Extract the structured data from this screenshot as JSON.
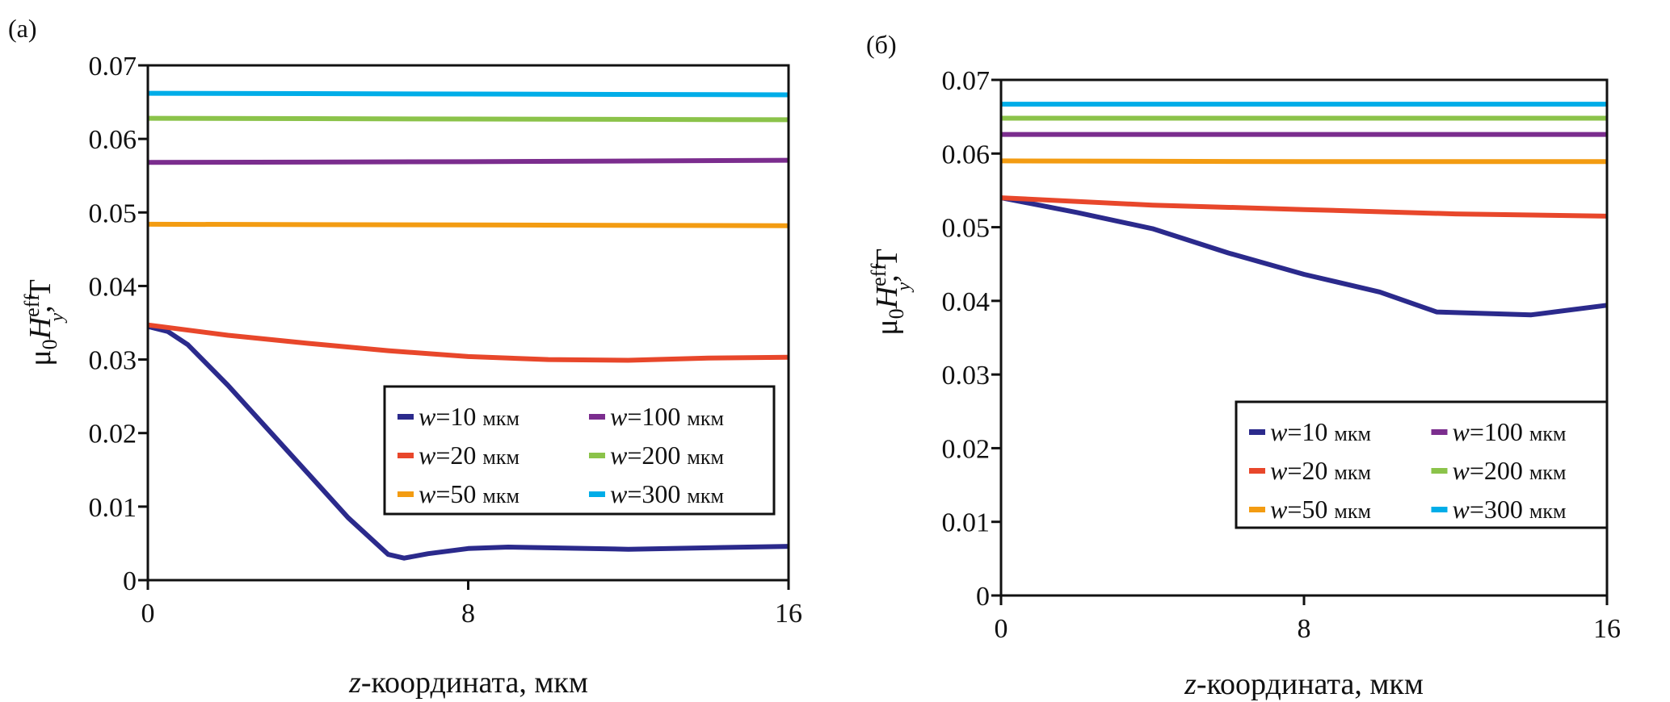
{
  "figure": {
    "panels": [
      "(a)",
      "(б)"
    ]
  },
  "chart_data": [
    {
      "type": "line",
      "panel": "(a)",
      "title": "",
      "xlabel_var": "z",
      "xlabel_rest": "-координата, мкм",
      "ylabel_mu": "μ",
      "ylabel_sub0": "0",
      "ylabel_H": "H",
      "ylabel_sup": "eff",
      "ylabel_sub": "y",
      "ylabel_unit": ", T",
      "xlim": [
        0,
        16
      ],
      "ylim": [
        0,
        0.07
      ],
      "xticks": [
        0,
        8,
        16
      ],
      "xtick_labels": [
        "0",
        "8",
        "16"
      ],
      "yticks": [
        0,
        0.01,
        0.02,
        0.03,
        0.04,
        0.05,
        0.06,
        0.07
      ],
      "ytick_labels": [
        "0",
        "0.01",
        "0.02",
        "0.03",
        "0.04",
        "0.05",
        "0.06",
        "0.07"
      ],
      "grid": false,
      "legend_position": "lower-right",
      "series": [
        {
          "name": "w=10 мкм",
          "w": "10",
          "unit": "мкм",
          "color": "#2B2A8C",
          "x": [
            0,
            0.5,
            1,
            2,
            3,
            4,
            5,
            6,
            6.4,
            7,
            8,
            9,
            10,
            12,
            14,
            16
          ],
          "y": [
            0.0345,
            0.0338,
            0.032,
            0.0265,
            0.0205,
            0.0145,
            0.0085,
            0.0035,
            0.003,
            0.0036,
            0.0043,
            0.0045,
            0.0044,
            0.0042,
            0.0044,
            0.0046
          ]
        },
        {
          "name": "w=20 мкм",
          "w": "20",
          "unit": "мкм",
          "color": "#E8472B",
          "x": [
            0,
            2,
            4,
            6,
            8,
            10,
            12,
            14,
            16
          ],
          "y": [
            0.0347,
            0.0333,
            0.0322,
            0.0312,
            0.0304,
            0.03,
            0.0299,
            0.0302,
            0.0303
          ]
        },
        {
          "name": "w=50 мкм",
          "w": "50",
          "unit": "мкм",
          "color": "#F39C12",
          "x": [
            0,
            8,
            16
          ],
          "y": [
            0.0484,
            0.0483,
            0.0482
          ]
        },
        {
          "name": "w=100 мкм",
          "w": "100",
          "unit": "мкм",
          "color": "#7B2D8E",
          "x": [
            0,
            8,
            16
          ],
          "y": [
            0.0568,
            0.0569,
            0.0571
          ]
        },
        {
          "name": "w=200 мкм",
          "w": "200",
          "unit": "мкм",
          "color": "#8BC34A",
          "x": [
            0,
            8,
            16
          ],
          "y": [
            0.0628,
            0.0627,
            0.0626
          ]
        },
        {
          "name": "w=300 мкм",
          "w": "300",
          "unit": "мкм",
          "color": "#00ADE8",
          "x": [
            0,
            8,
            16
          ],
          "y": [
            0.0662,
            0.0661,
            0.066
          ]
        }
      ]
    },
    {
      "type": "line",
      "panel": "(б)",
      "title": "",
      "xlabel_var": "z",
      "xlabel_rest": "-координата, мкм",
      "ylabel_mu": "μ",
      "ylabel_sub0": "0",
      "ylabel_H": "H",
      "ylabel_sup": "eff",
      "ylabel_sub": "y",
      "ylabel_unit": ", T",
      "xlim": [
        0,
        16
      ],
      "ylim": [
        0,
        0.07
      ],
      "xticks": [
        0,
        8,
        16
      ],
      "xtick_labels": [
        "0",
        "8",
        "16"
      ],
      "yticks": [
        0,
        0.01,
        0.02,
        0.03,
        0.04,
        0.05,
        0.06,
        0.07
      ],
      "ytick_labels": [
        "0",
        "0.01",
        "0.02",
        "0.03",
        "0.04",
        "0.05",
        "0.06",
        "0.07"
      ],
      "grid": false,
      "legend_position": "lower-right",
      "series": [
        {
          "name": "w=10 мкм",
          "w": "10",
          "unit": "мкм",
          "color": "#2B2A8C",
          "x": [
            0,
            2,
            4,
            6,
            8,
            10,
            11.5,
            14,
            16
          ],
          "y": [
            0.054,
            0.052,
            0.0498,
            0.0465,
            0.0436,
            0.0412,
            0.0385,
            0.0381,
            0.0394
          ]
        },
        {
          "name": "w=20 мкм",
          "w": "20",
          "unit": "мкм",
          "color": "#E8472B",
          "x": [
            0,
            4,
            8,
            12,
            16
          ],
          "y": [
            0.054,
            0.053,
            0.0524,
            0.0518,
            0.0515
          ]
        },
        {
          "name": "w=50 мкм",
          "w": "50",
          "unit": "мкм",
          "color": "#F39C12",
          "x": [
            0,
            8,
            16
          ],
          "y": [
            0.059,
            0.0589,
            0.0589
          ]
        },
        {
          "name": "w=100 мкм",
          "w": "100",
          "unit": "мкм",
          "color": "#7B2D8E",
          "x": [
            0,
            8,
            16
          ],
          "y": [
            0.0626,
            0.0626,
            0.0626
          ]
        },
        {
          "name": "w=200 мкм",
          "w": "200",
          "unit": "мкм",
          "color": "#8BC34A",
          "x": [
            0,
            8,
            16
          ],
          "y": [
            0.0648,
            0.0648,
            0.0648
          ]
        },
        {
          "name": "w=300 мкм",
          "w": "300",
          "unit": "мкм",
          "color": "#00ADE8",
          "x": [
            0,
            8,
            16
          ],
          "y": [
            0.0667,
            0.0667,
            0.0667
          ]
        }
      ]
    }
  ]
}
